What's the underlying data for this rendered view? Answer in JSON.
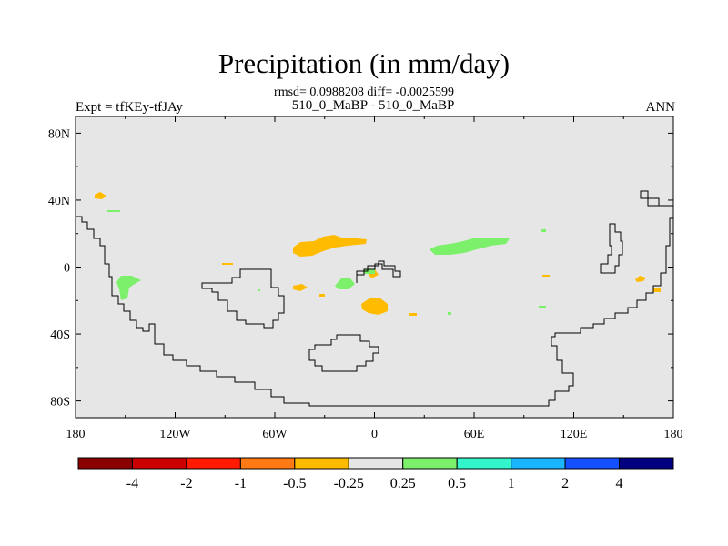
{
  "chart_data": {
    "type": "heatmap",
    "title": "Precipitation (in mm/day)",
    "stats_text": "rmsd= 0.0988208 diff= -0.0025599",
    "subtitle": "510_0_MaBP - 510_0_MaBP",
    "left_label": "Expt = tfKEy-tfJAy",
    "right_label": "ANN",
    "x_ticks": [
      "180",
      "120W",
      "60W",
      "0",
      "60E",
      "120E",
      "180"
    ],
    "x_tick_values": [
      -180,
      -120,
      -60,
      0,
      60,
      120,
      180
    ],
    "y_ticks": [
      "80N",
      "40N",
      "0",
      "40S",
      "80S"
    ],
    "y_tick_values": [
      80,
      40,
      0,
      -40,
      -80
    ],
    "xlim": [
      -180,
      180
    ],
    "ylim": [
      -90,
      90
    ],
    "colorbar": {
      "labels": [
        "-4",
        "-2",
        "-1",
        "-0.5",
        "-0.25",
        "0.25",
        "0.5",
        "1",
        "2",
        "4"
      ],
      "colors": [
        "#8b0000",
        "#cc0000",
        "#ff1a00",
        "#ff7a14",
        "#ffbb00",
        "#e6e6e6",
        "#7cf06b",
        "#33f5cc",
        "#1ab4ff",
        "#1450ff",
        "#000080"
      ]
    },
    "anomaly_regions": [
      {
        "name": "north-pacific-dry",
        "class": "-0.5 to -0.25",
        "color": "#ffbb00",
        "lon": -163,
        "lat": 43
      },
      {
        "name": "central-america-dry",
        "class": "-0.5 to -0.25",
        "color": "#ffbb00",
        "lon": -40,
        "lat": 13
      },
      {
        "name": "equatorial-atlantic-dry",
        "class": "-0.5 to -0.25",
        "color": "#ffbb00",
        "lon": -50,
        "lat": -10
      },
      {
        "name": "south-atlantic-dry",
        "class": "-0.5 to -0.25",
        "color": "#ffbb00",
        "lon": 0,
        "lat": -25
      },
      {
        "name": "east-pacific-wet",
        "class": "0.25 to 0.5",
        "color": "#7cf06b",
        "lon": -150,
        "lat": -10
      },
      {
        "name": "west-africa-wet",
        "class": "0.25 to 0.5",
        "color": "#7cf06b",
        "lon": -20,
        "lat": -8
      },
      {
        "name": "north-indian-wet",
        "class": "0.25 to 0.5",
        "color": "#7cf06b",
        "lon": 55,
        "lat": 12
      },
      {
        "name": "west-pacific-dry",
        "class": "-0.5 to -0.25",
        "color": "#ffbb00",
        "lon": 162,
        "lat": -8
      }
    ]
  }
}
